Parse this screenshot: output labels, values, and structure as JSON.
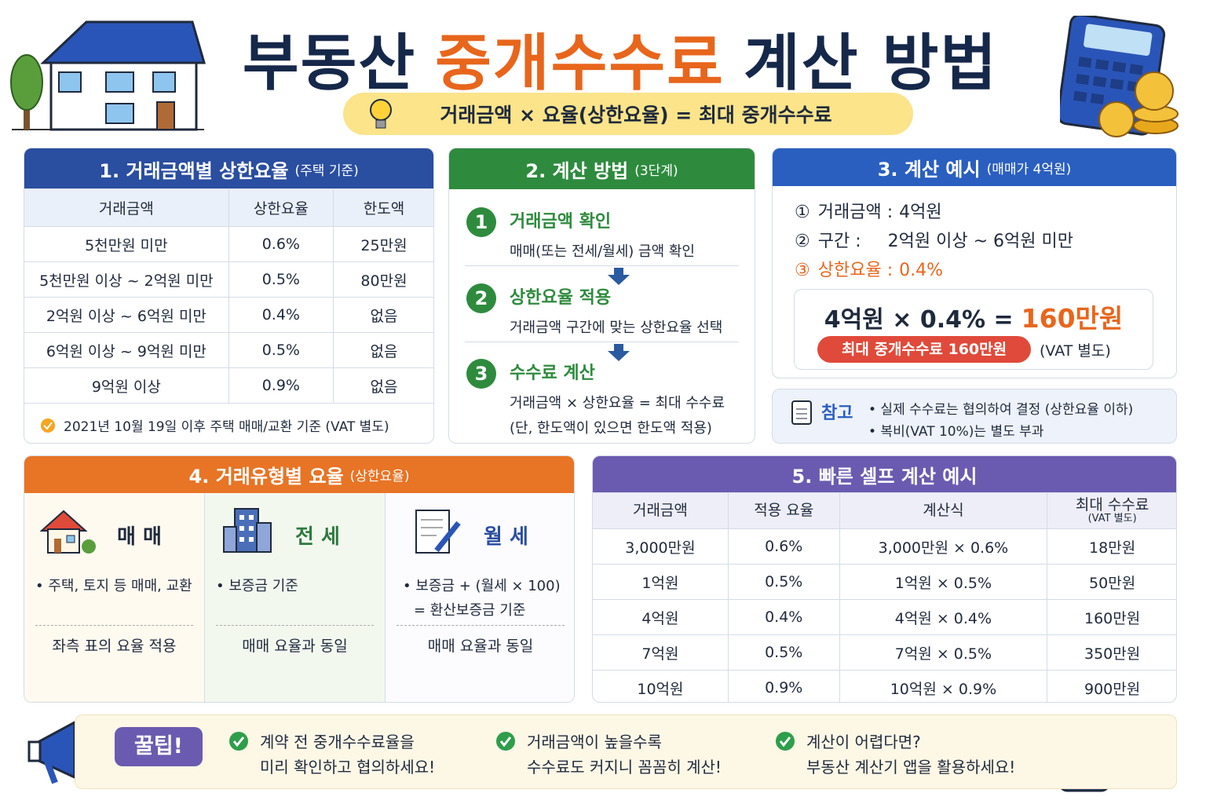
{
  "header": {
    "title_part1": "부동산",
    "title_highlight": "중개수수료",
    "title_part2": "계산 방법",
    "formula": "거래금액 × 요율(상한요율) = 최대 중개수수료"
  },
  "section1": {
    "title": "1. 거래금액별 상한요율",
    "subtitle": "(주택 기준)",
    "columns": [
      "거래금액",
      "상한요율",
      "한도액"
    ],
    "rows": [
      [
        "5천만원 미만",
        "0.6%",
        "25만원"
      ],
      [
        "5천만원 이상 ~ 2억원 미만",
        "0.5%",
        "80만원"
      ],
      [
        "2억원 이상 ~ 6억원 미만",
        "0.4%",
        "없음"
      ],
      [
        "6억원 이상 ~ 9억원 미만",
        "0.5%",
        "없음"
      ],
      [
        "9억원 이상",
        "0.9%",
        "없음"
      ]
    ],
    "note": "2021년 10월 19일 이후 주택 매매/교환 기준 (VAT 별도)"
  },
  "section2": {
    "title": "2. 계산 방법",
    "subtitle": "(3단계)",
    "steps": [
      {
        "number": "1",
        "title": "거래금액 확인",
        "lines": [
          "매매(또는 전세/월세) 금액 확인"
        ]
      },
      {
        "number": "2",
        "title": "상한요율 적용",
        "lines": [
          "거래금액 구간에 맞는 상한요율 선택"
        ]
      },
      {
        "number": "3",
        "title": "수수료 계산",
        "lines": [
          "거래금액 × 상한요율 = 최대 수수료",
          "(단, 한도액이 있으면 한도액 적용)"
        ]
      }
    ]
  },
  "section3": {
    "title": "3. 계산 예시",
    "subtitle": "(매매가 4억원)",
    "items": [
      {
        "marker": "①",
        "label": "거래금액 :",
        "value": "4억원"
      },
      {
        "marker": "②",
        "label": "구간 :",
        "value": "2억원 이상 ~ 6억원 미만"
      },
      {
        "marker": "③",
        "label": "상한요율 :",
        "value": "0.4%"
      }
    ],
    "formula": "4억원 × 0.4% =",
    "result": "160만원",
    "badge": "최대 중개수수료 160만원",
    "badge_note": "(VAT 별도)",
    "note_title": "참고",
    "notes": [
      "• 실제 수수료는 협의하여 결정 (상한요율 이하)",
      "• 복비(VAT 10%)는 별도 부과"
    ]
  },
  "section4": {
    "title": "4. 거래유형별 요율",
    "subtitle": "(상한요율)",
    "types": [
      {
        "name": "매 매",
        "bullets": [
          "• 주택, 토지 등 매매, 교환"
        ],
        "footer": "좌측 표의 요율 적용"
      },
      {
        "name": "전 세",
        "bullets": [
          "• 보증금 기준"
        ],
        "footer": "매매 요율과 동일"
      },
      {
        "name": "월 세",
        "bullets": [
          "• 보증금 + (월세 × 100)",
          "= 환산보증금 기준"
        ],
        "footer": "매매 요율과 동일"
      }
    ]
  },
  "section5": {
    "title": "5. 빠른 셀프 계산 예시",
    "columns": [
      "거래금액",
      "적용 요율",
      "계산식",
      "최대 수수료"
    ],
    "column_note": "(VAT 별도)",
    "rows": [
      [
        "3,000만원",
        "0.6%",
        "3,000만원 × 0.6%",
        "18만원"
      ],
      [
        "1억원",
        "0.5%",
        "1억원 × 0.5%",
        "50만원"
      ],
      [
        "4억원",
        "0.4%",
        "4억원 × 0.4%",
        "160만원"
      ],
      [
        "7억원",
        "0.5%",
        "7억원 × 0.5%",
        "350만원"
      ],
      [
        "10억원",
        "0.9%",
        "10억원 × 0.9%",
        "900만원"
      ]
    ]
  },
  "tips": {
    "label": "꿀팁!",
    "items": [
      [
        "계약 전 중개수수료율을",
        "미리 확인하고 협의하세요!"
      ],
      [
        "거래금액이 높을수록",
        "수수료도 커지니 꼼꼼히 계산!"
      ],
      [
        "계산이 어렵다면?",
        "부동산 계산기 앱을 활용하세요!"
      ]
    ]
  }
}
